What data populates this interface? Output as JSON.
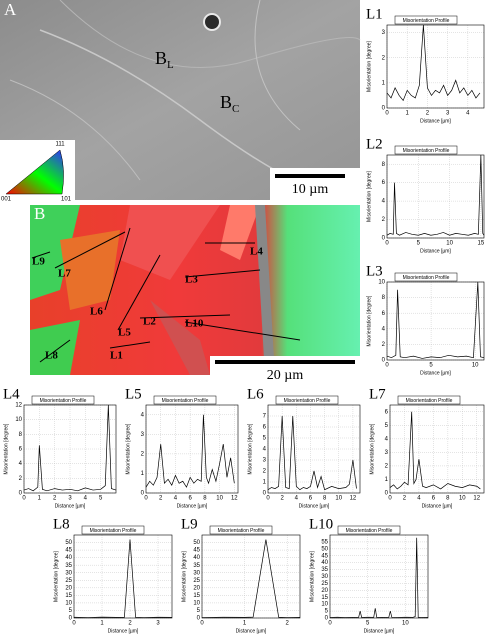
{
  "image_a": {
    "label": "A",
    "markers": [
      {
        "main": "B",
        "sub": "L"
      },
      {
        "main": "B",
        "sub": "C"
      }
    ],
    "scale_bar": "10 µm"
  },
  "color_key": {
    "top": "111",
    "left": "001",
    "right": "101"
  },
  "image_b": {
    "label": "B",
    "lines": [
      "L1",
      "L2",
      "L3",
      "L4",
      "L5",
      "L6",
      "L7",
      "L8",
      "L9",
      "L10"
    ],
    "scale_bar": "20 µm"
  },
  "chart_data": [
    {
      "type": "line",
      "title": "L1",
      "legend": "Misorientation Profile",
      "xlabel": "Distance [µm]",
      "ylabel": "Misorientation [degree]",
      "color": "#000000",
      "grid": true,
      "x": [
        0,
        0.2,
        0.4,
        0.6,
        0.8,
        1.0,
        1.2,
        1.4,
        1.6,
        1.8,
        2.0,
        2.2,
        2.4,
        2.6,
        2.8,
        3.0,
        3.2,
        3.4,
        3.6,
        3.8,
        4.0,
        4.2,
        4.4,
        4.6
      ],
      "values": [
        0.6,
        0.4,
        0.8,
        0.5,
        0.3,
        0.7,
        0.5,
        0.4,
        0.9,
        3.3,
        0.8,
        0.5,
        0.7,
        0.6,
        0.9,
        0.5,
        0.7,
        1.1,
        0.6,
        0.8,
        0.5,
        0.7,
        0.4,
        0.6
      ],
      "xlim": [
        0,
        4.8
      ],
      "xticks": [
        0,
        1,
        2,
        3,
        4
      ],
      "ylim": [
        0,
        3.3
      ],
      "yticks": [
        0,
        1,
        2,
        3
      ]
    },
    {
      "type": "line",
      "title": "L2",
      "legend": "Misorientation Profile",
      "xlabel": "Distance [µm]",
      "ylabel": "Misorientation [degree]",
      "color": "#000000",
      "grid": true,
      "x": [
        0,
        0.5,
        1,
        1.2,
        1.5,
        2,
        3,
        4,
        5,
        6,
        7,
        8,
        9,
        10,
        11,
        12,
        13,
        14,
        14.6,
        15,
        15.3,
        15.5
      ],
      "values": [
        0.3,
        0.5,
        0.4,
        6,
        0.5,
        0.3,
        0.6,
        0.4,
        0.3,
        0.5,
        0.3,
        0.4,
        0.6,
        0.3,
        0.5,
        0.4,
        0.3,
        0.5,
        0.4,
        9,
        0.5,
        0.3
      ],
      "xlim": [
        0,
        15.5
      ],
      "xticks": [
        0,
        5,
        10,
        15
      ],
      "ylim": [
        0,
        9
      ],
      "yticks": [
        0,
        2,
        4,
        6,
        8
      ]
    },
    {
      "type": "line",
      "title": "L3",
      "legend": "Misorientation Profile",
      "xlabel": "Distance [µm]",
      "ylabel": "Misorientation [degree]",
      "color": "#000000",
      "grid": true,
      "x": [
        0,
        0.5,
        1,
        1.2,
        1.5,
        2,
        3,
        4,
        5,
        6,
        7,
        8,
        9,
        9.8,
        10.3,
        10.6,
        11
      ],
      "values": [
        0.5,
        0.3,
        0.6,
        9,
        0.4,
        0.3,
        0.5,
        0.2,
        0.4,
        0.3,
        0.6,
        0.4,
        0.5,
        0.3,
        10,
        0.4,
        0.3
      ],
      "xlim": [
        0,
        11
      ],
      "xticks": [
        0,
        5,
        10
      ],
      "ylim": [
        0,
        10
      ],
      "yticks": [
        0,
        2,
        4,
        6,
        8,
        10
      ]
    },
    {
      "type": "line",
      "title": "L4",
      "legend": "Misorientation Profile",
      "xlabel": "Distance [µm]",
      "ylabel": "Misorientation [degree]",
      "color": "#000000",
      "grid": true,
      "x": [
        0,
        0.3,
        0.6,
        0.9,
        1.0,
        1.2,
        1.5,
        2,
        2.5,
        3,
        3.5,
        4,
        4.5,
        5,
        5.3,
        5.5,
        5.7,
        6
      ],
      "values": [
        0.4,
        0.6,
        0.3,
        0.8,
        6.5,
        0.5,
        0.3,
        0.6,
        0.4,
        0.5,
        0.3,
        0.7,
        0.4,
        0.5,
        1,
        12,
        0.6,
        0.4
      ],
      "xlim": [
        0,
        6
      ],
      "xticks": [
        0,
        1,
        2,
        3,
        4,
        5
      ],
      "ylim": [
        0,
        12
      ],
      "yticks": [
        0,
        2,
        4,
        6,
        8,
        10,
        12
      ]
    },
    {
      "type": "line",
      "title": "L5",
      "legend": "Misorientation Profile",
      "xlabel": "Distance [µm]",
      "ylabel": "Misorientation [degree]",
      "color": "#000000",
      "grid": true,
      "x": [
        0,
        0.5,
        1,
        1.5,
        2,
        2.5,
        3,
        3.5,
        4,
        4.5,
        5,
        5.5,
        6,
        6.5,
        7,
        7.5,
        7.8,
        8.2,
        8.5,
        9,
        9.5,
        10,
        10.5,
        11,
        11.5,
        12
      ],
      "values": [
        0.3,
        0.6,
        0.4,
        0.8,
        2.5,
        0.5,
        0.7,
        0.4,
        0.9,
        0.5,
        0.6,
        0.3,
        0.8,
        0.5,
        0.7,
        0.6,
        4,
        0.8,
        0.5,
        1.2,
        0.6,
        1.5,
        2.5,
        0.8,
        1.8,
        0.5
      ],
      "xlim": [
        0,
        12.5
      ],
      "xticks": [
        0,
        2,
        4,
        6,
        8,
        10,
        12
      ],
      "ylim": [
        0,
        4.5
      ],
      "yticks": [
        0,
        1,
        2,
        3,
        4
      ]
    },
    {
      "type": "line",
      "title": "L6",
      "legend": "Misorientation Profile",
      "xlabel": "Distance [µm]",
      "ylabel": "Misorientation [degree]",
      "color": "#000000",
      "grid": true,
      "x": [
        0,
        0.5,
        1,
        1.5,
        2,
        2.5,
        3,
        3.5,
        4,
        4.5,
        5,
        5.5,
        6,
        6.5,
        7,
        7.5,
        8,
        9,
        10,
        11,
        11.5,
        12,
        12.5
      ],
      "values": [
        0.3,
        0.5,
        0.4,
        0.6,
        7,
        0.5,
        0.4,
        7,
        0.6,
        0.3,
        0.5,
        0.4,
        0.6,
        2,
        0.5,
        1.5,
        0.3,
        0.6,
        0.4,
        0.5,
        0.8,
        3,
        0.4
      ],
      "xlim": [
        0,
        13
      ],
      "xticks": [
        0,
        2,
        4,
        6,
        8,
        10,
        12
      ],
      "ylim": [
        0,
        8
      ],
      "yticks": [
        0,
        1,
        2,
        3,
        4,
        5,
        6,
        7
      ]
    },
    {
      "type": "line",
      "title": "L7",
      "legend": "Misorientation Profile",
      "xlabel": "Distance [µm]",
      "ylabel": "Misorientation [degree]",
      "color": "#000000",
      "grid": true,
      "x": [
        0,
        0.5,
        1,
        1.5,
        2,
        2.5,
        3,
        3.3,
        3.6,
        4,
        4.5,
        5,
        6,
        7,
        8,
        9,
        10,
        11,
        12,
        12.5
      ],
      "values": [
        0.4,
        0.6,
        0.3,
        0.5,
        0.8,
        0.6,
        6,
        0.7,
        1,
        2.5,
        0.5,
        0.4,
        0.6,
        0.3,
        0.7,
        0.5,
        0.4,
        0.6,
        0.5,
        0.3
      ],
      "xlim": [
        0,
        13
      ],
      "xticks": [
        0,
        2,
        4,
        6,
        8,
        10,
        12
      ],
      "ylim": [
        0,
        6.5
      ],
      "yticks": [
        0,
        1,
        2,
        3,
        4,
        5,
        6
      ]
    },
    {
      "type": "line",
      "title": "L8",
      "legend": "Misorientation Profile",
      "xlabel": "Distance [µm]",
      "ylabel": "Misorientation [degree]",
      "color": "#000000",
      "grid": true,
      "x": [
        0,
        0.5,
        1,
        1.5,
        1.8,
        2,
        2.2,
        2.5,
        3,
        3.5
      ],
      "values": [
        0.5,
        0.3,
        0.6,
        0.4,
        0.5,
        52,
        0.4,
        0.3,
        0.5,
        0.4
      ],
      "xlim": [
        0,
        3.5
      ],
      "xticks": [
        0,
        1,
        2,
        3
      ],
      "ylim": [
        0,
        55
      ],
      "yticks": [
        0,
        5,
        10,
        15,
        20,
        25,
        30,
        35,
        40,
        45,
        50
      ]
    },
    {
      "type": "line",
      "title": "L9",
      "legend": "Misorientation Profile",
      "xlabel": "Distance [µm]",
      "ylabel": "Misorientation [degree]",
      "color": "#000000",
      "grid": true,
      "x": [
        0,
        0.5,
        1,
        1.2,
        1.5,
        1.8,
        2,
        2.3
      ],
      "values": [
        0.3,
        0.5,
        0.4,
        0.6,
        52,
        0.5,
        0.3,
        0.4
      ],
      "xlim": [
        0,
        2.3
      ],
      "xticks": [
        0,
        1,
        2
      ],
      "ylim": [
        0,
        55
      ],
      "yticks": [
        0,
        5,
        10,
        15,
        20,
        25,
        30,
        35,
        40,
        45,
        50
      ]
    },
    {
      "type": "line",
      "title": "L10",
      "legend": "Misorientation Profile",
      "xlabel": "Distance [µm]",
      "ylabel": "Misorientation [degree]",
      "color": "#000000",
      "grid": true,
      "x": [
        0,
        1,
        2,
        3,
        3.8,
        4,
        4.2,
        5,
        5.8,
        6,
        6.2,
        7,
        7.8,
        8,
        8.2,
        9,
        10,
        11,
        11.3,
        11.5,
        11.7,
        12,
        13
      ],
      "values": [
        0.4,
        0.6,
        0.3,
        0.5,
        0.6,
        5,
        0.4,
        0.6,
        0.5,
        7,
        0.4,
        0.5,
        0.6,
        5,
        0.5,
        0.4,
        0.6,
        0.5,
        1,
        58,
        0.6,
        0.4,
        0.5
      ],
      "xlim": [
        0,
        13
      ],
      "xticks": [
        0,
        5,
        10
      ],
      "ylim": [
        0,
        60
      ],
      "yticks": [
        0,
        5,
        10,
        15,
        20,
        25,
        30,
        35,
        40,
        45,
        50,
        55
      ]
    }
  ]
}
